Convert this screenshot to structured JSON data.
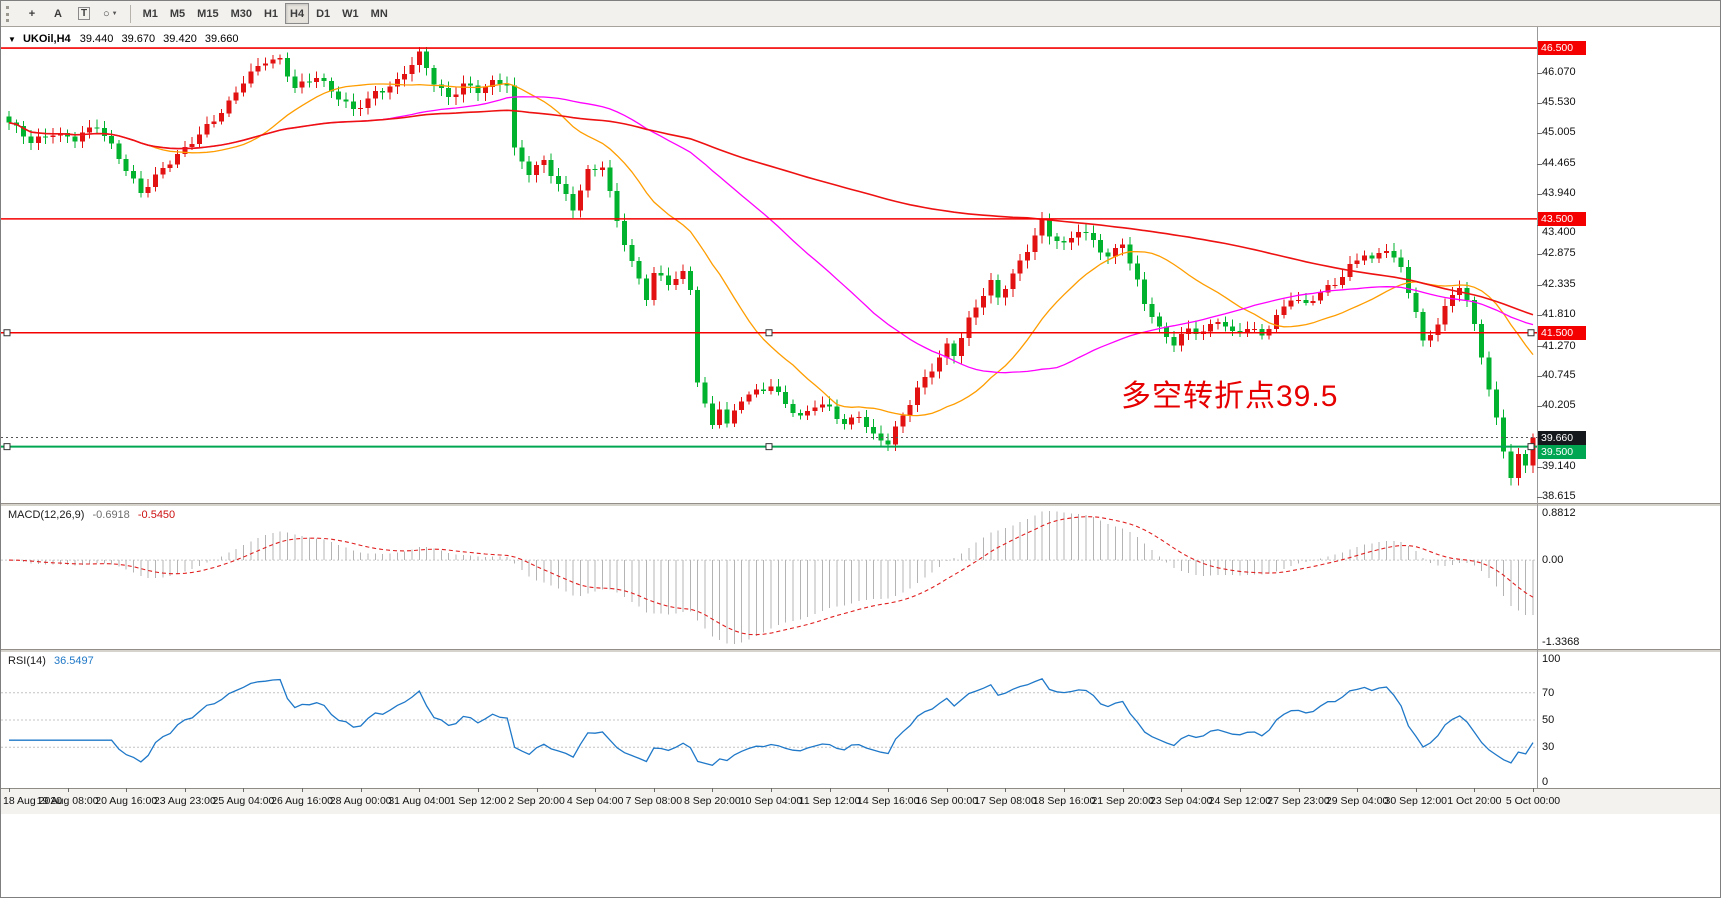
{
  "toolbar": {
    "tools": [
      {
        "name": "crosshair",
        "glyph": "+"
      },
      {
        "name": "text",
        "glyph": "A"
      },
      {
        "name": "label",
        "glyph": "T"
      },
      {
        "name": "shapes",
        "glyph": "○",
        "caret": "▼"
      }
    ],
    "timeframes": [
      "M1",
      "M5",
      "M15",
      "M30",
      "H1",
      "H4",
      "D1",
      "W1",
      "MN"
    ],
    "active_timeframe": "H4"
  },
  "chart_header": {
    "marker": "▼",
    "symbol": "UKOil,H4",
    "open": "39.440",
    "high": "39.670",
    "low": "39.420",
    "close": "39.660"
  },
  "annotation": {
    "text": "多空转折点39.5",
    "color": "#e60000"
  },
  "current_price": {
    "label": "39.660",
    "value": 39.66,
    "bg": "#15181d"
  },
  "price_scale": {
    "ticks": [
      {
        "label": "46.070",
        "value": 46.07
      },
      {
        "label": "45.530",
        "value": 45.53
      },
      {
        "label": "45.005",
        "value": 45.005
      },
      {
        "label": "44.465",
        "value": 44.465
      },
      {
        "label": "43.940",
        "value": 43.94
      },
      {
        "label": "43.400",
        "value": 43.4
      },
      {
        "label": "42.875",
        "value": 42.875
      },
      {
        "label": "42.335",
        "value": 42.335
      },
      {
        "label": "41.810",
        "value": 41.81
      },
      {
        "label": "41.270",
        "value": 41.27
      },
      {
        "label": "40.745",
        "value": 40.745
      },
      {
        "label": "40.205",
        "value": 40.205
      },
      {
        "label": "39.675",
        "value": 39.675
      },
      {
        "label": "39.140",
        "value": 39.14
      },
      {
        "label": "38.615",
        "value": 38.615
      }
    ]
  },
  "macd": {
    "label": "MACD(12,26,9)",
    "value_main": "-0.6918",
    "value_signal": "-0.5450",
    "scale_top": "0.8812",
    "scale_zero": "0.00",
    "scale_bottom": "-1.3368"
  },
  "rsi": {
    "label": "RSI(14)",
    "value": "36.5497",
    "levels": [
      70,
      50,
      30
    ],
    "scale_labels": [
      {
        "label": "100",
        "value": 100
      },
      {
        "label": "70",
        "value": 70
      },
      {
        "label": "50",
        "value": 50
      },
      {
        "label": "30",
        "value": 30
      },
      {
        "label": "0",
        "value": 0
      }
    ]
  },
  "time_axis": {
    "labels": [
      "18 Aug 2020",
      "19 Aug 08:00",
      "20 Aug 16:00",
      "23 Aug 23:00",
      "25 Aug 04:00",
      "26 Aug 16:00",
      "28 Aug 00:00",
      "31 Aug 04:00",
      "1 Sep 12:00",
      "2 Sep 20:00",
      "4 Sep 04:00",
      "7 Sep 08:00",
      "8 Sep 20:00",
      "10 Sep 04:00",
      "11 Sep 12:00",
      "14 Sep 16:00",
      "16 Sep 00:00",
      "17 Sep 08:00",
      "18 Sep 16:00",
      "21 Sep 20:00",
      "23 Sep 04:00",
      "24 Sep 12:00",
      "27 Sep 23:00",
      "29 Sep 04:00",
      "30 Sep 12:00",
      "1 Oct 20:00",
      "5 Oct 00:00"
    ]
  },
  "chart_data": {
    "type": "candlestick",
    "symbol": "UKOil",
    "timeframe": "H4",
    "title": "UKOil,H4 39.440 39.670 39.420 39.660",
    "bar_count": 209,
    "first_open": 45.3,
    "last_close": 39.66,
    "ylim": [
      38.51,
      46.87
    ],
    "bull_color": "#e31212",
    "bear_color": "#00b22d",
    "close_anchors": [
      [
        0,
        45.15
      ],
      [
        3,
        44.85
      ],
      [
        6,
        45.05
      ],
      [
        9,
        44.9
      ],
      [
        12,
        45.1
      ],
      [
        15,
        44.6
      ],
      [
        18,
        44.0
      ],
      [
        21,
        44.35
      ],
      [
        24,
        44.7
      ],
      [
        27,
        45.15
      ],
      [
        30,
        45.55
      ],
      [
        32,
        45.9
      ],
      [
        35,
        46.25
      ],
      [
        37,
        46.3
      ],
      [
        39,
        45.85
      ],
      [
        42,
        46.0
      ],
      [
        44,
        45.7
      ],
      [
        47,
        45.4
      ],
      [
        50,
        45.75
      ],
      [
        53,
        45.9
      ],
      [
        56,
        46.35
      ],
      [
        58,
        45.9
      ],
      [
        60,
        45.65
      ],
      [
        62,
        45.9
      ],
      [
        64,
        45.75
      ],
      [
        66,
        45.85
      ],
      [
        68,
        45.85
      ],
      [
        69,
        44.7
      ],
      [
        71,
        44.35
      ],
      [
        73,
        44.55
      ],
      [
        75,
        44.1
      ],
      [
        77,
        43.65
      ],
      [
        79,
        44.3
      ],
      [
        81,
        44.45
      ],
      [
        83,
        43.5
      ],
      [
        85,
        42.75
      ],
      [
        87,
        42.1
      ],
      [
        88,
        42.5
      ],
      [
        90,
        42.35
      ],
      [
        92,
        42.55
      ],
      [
        93,
        42.3
      ],
      [
        94,
        40.7
      ],
      [
        95,
        40.25
      ],
      [
        96,
        39.9
      ],
      [
        97,
        40.2
      ],
      [
        98,
        39.85
      ],
      [
        100,
        40.3
      ],
      [
        102,
        40.45
      ],
      [
        104,
        40.6
      ],
      [
        106,
        40.3
      ],
      [
        108,
        40.0
      ],
      [
        110,
        40.2
      ],
      [
        112,
        40.15
      ],
      [
        114,
        39.9
      ],
      [
        116,
        40.1
      ],
      [
        118,
        39.7
      ],
      [
        120,
        39.55
      ],
      [
        122,
        40.0
      ],
      [
        124,
        40.5
      ],
      [
        126,
        40.9
      ],
      [
        128,
        41.3
      ],
      [
        129,
        41.15
      ],
      [
        131,
        41.7
      ],
      [
        133,
        42.15
      ],
      [
        134,
        42.35
      ],
      [
        135,
        42.1
      ],
      [
        137,
        42.55
      ],
      [
        139,
        43.0
      ],
      [
        141,
        43.45
      ],
      [
        142,
        43.2
      ],
      [
        144,
        43.0
      ],
      [
        146,
        43.3
      ],
      [
        148,
        43.15
      ],
      [
        150,
        42.85
      ],
      [
        152,
        43.1
      ],
      [
        153,
        42.7
      ],
      [
        155,
        42.0
      ],
      [
        157,
        41.55
      ],
      [
        159,
        41.35
      ],
      [
        161,
        41.6
      ],
      [
        163,
        41.5
      ],
      [
        165,
        41.7
      ],
      [
        167,
        41.45
      ],
      [
        169,
        41.6
      ],
      [
        171,
        41.5
      ],
      [
        173,
        41.8
      ],
      [
        175,
        42.1
      ],
      [
        177,
        41.95
      ],
      [
        179,
        42.2
      ],
      [
        181,
        42.4
      ],
      [
        183,
        42.7
      ],
      [
        185,
        42.9
      ],
      [
        186,
        42.75
      ],
      [
        188,
        42.95
      ],
      [
        190,
        42.6
      ],
      [
        192,
        41.9
      ],
      [
        193,
        41.35
      ],
      [
        195,
        41.7
      ],
      [
        197,
        42.15
      ],
      [
        198,
        42.3
      ],
      [
        199,
        42.0
      ],
      [
        200,
        41.6
      ],
      [
        201,
        41.1
      ],
      [
        202,
        40.5
      ],
      [
        203,
        40.0
      ],
      [
        204,
        39.5
      ],
      [
        205,
        39.0
      ],
      [
        206,
        39.35
      ],
      [
        207,
        39.2
      ],
      [
        208,
        39.66
      ]
    ],
    "moving_averages": [
      {
        "period": 20,
        "color": "#ff9d00"
      },
      {
        "period": 50,
        "color": "#ff00ff"
      },
      {
        "period": 140,
        "color": "#ee1111"
      }
    ],
    "level_lines": [
      {
        "price": 46.5,
        "label": "46.500",
        "color": "#f40000",
        "width": 1.6,
        "handles": false
      },
      {
        "price": 43.5,
        "label": "43.500",
        "color": "#f40000",
        "width": 1.6,
        "handles": false
      },
      {
        "price": 41.5,
        "label": "41.500",
        "color": "#f40000",
        "width": 1.6,
        "handles": true
      },
      {
        "price": 39.5,
        "label": "39.500",
        "color": "#00a651",
        "width": 2,
        "handles": true
      }
    ],
    "indicators": {
      "macd": {
        "fast": 12,
        "slow": 26,
        "signal": 9
      },
      "rsi": {
        "period": 14
      }
    }
  }
}
